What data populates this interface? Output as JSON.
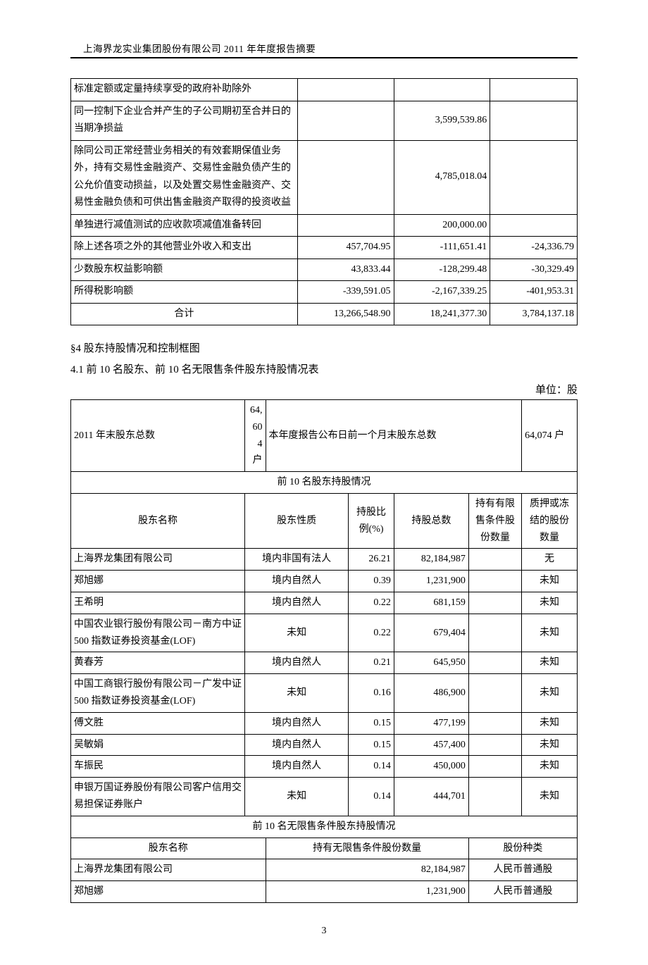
{
  "header": "上海界龙实业集团股份有限公司 2011 年年度报告摘要",
  "page_number": "3",
  "table1": {
    "rows": [
      {
        "label": "标准定额或定量持续享受的政府补助除外",
        "c1": "",
        "c2": "",
        "c3": ""
      },
      {
        "label": "同一控制下企业合并产生的子公司期初至合并日的当期净损益",
        "c1": "",
        "c2": "3,599,539.86",
        "c3": ""
      },
      {
        "label": "除同公司正常经营业务相关的有效套期保值业务外，持有交易性金融资产、交易性金融负债产生的公允价值变动损益，以及处置交易性金融资产、交易性金融负债和可供出售金融资产取得的投资收益",
        "c1": "",
        "c2": "4,785,018.04",
        "c3": ""
      },
      {
        "label": "单独进行减值测试的应收款项减值准备转回",
        "c1": "",
        "c2": "200,000.00",
        "c3": ""
      },
      {
        "label": "除上述各项之外的其他营业外收入和支出",
        "c1": "457,704.95",
        "c2": "-111,651.41",
        "c3": "-24,336.79"
      },
      {
        "label": "少数股东权益影响额",
        "c1": "43,833.44",
        "c2": "-128,299.48",
        "c3": "-30,329.49"
      },
      {
        "label": "所得税影响额",
        "c1": "-339,591.05",
        "c2": "-2,167,339.25",
        "c3": "-401,953.31"
      },
      {
        "label": "合计",
        "c1": "13,266,548.90",
        "c2": "18,241,377.30",
        "c3": "3,784,137.18",
        "label_center": true
      }
    ]
  },
  "section4": {
    "title": "§4 股东持股情况和控制框图",
    "sub": "4.1 前 10 名股东、前 10 名无限售条件股东持股情况表",
    "unit": "单位：股"
  },
  "table2": {
    "top": {
      "l1": "2011 年末股东总数",
      "v1": "64,604 户",
      "l2": "本年度报告公布日前一个月末股东总数",
      "v2": "64,074 户"
    },
    "section_a_title": "前 10 名股东持股情况",
    "head_a": {
      "name": "股东名称",
      "nature": "股东性质",
      "pct": "持股比例(%)",
      "total": "持股总数",
      "restricted": "持有有限售条件股份数量",
      "pledge": "质押或冻结的股份数量"
    },
    "rows_a": [
      {
        "name": "上海界龙集团有限公司",
        "nature": "境内非国有法人",
        "pct": "26.21",
        "total": "82,184,987",
        "restricted": "",
        "pledge": "无"
      },
      {
        "name": "郑旭娜",
        "nature": "境内自然人",
        "pct": "0.39",
        "total": "1,231,900",
        "restricted": "",
        "pledge": "未知"
      },
      {
        "name": "王希明",
        "nature": "境内自然人",
        "pct": "0.22",
        "total": "681,159",
        "restricted": "",
        "pledge": "未知"
      },
      {
        "name": "中国农业银行股份有限公司－南方中证 500 指数证券投资基金(LOF)",
        "nature": "未知",
        "pct": "0.22",
        "total": "679,404",
        "restricted": "",
        "pledge": "未知"
      },
      {
        "name": "黄春芳",
        "nature": "境内自然人",
        "pct": "0.21",
        "total": "645,950",
        "restricted": "",
        "pledge": "未知"
      },
      {
        "name": "中国工商银行股份有限公司－广发中证 500 指数证券投资基金(LOF)",
        "nature": "未知",
        "pct": "0.16",
        "total": "486,900",
        "restricted": "",
        "pledge": "未知"
      },
      {
        "name": "傅文胜",
        "nature": "境内自然人",
        "pct": "0.15",
        "total": "477,199",
        "restricted": "",
        "pledge": "未知"
      },
      {
        "name": "吴敏娟",
        "nature": "境内自然人",
        "pct": "0.15",
        "total": "457,400",
        "restricted": "",
        "pledge": "未知"
      },
      {
        "name": "车振民",
        "nature": "境内自然人",
        "pct": "0.14",
        "total": "450,000",
        "restricted": "",
        "pledge": "未知"
      },
      {
        "name": "申银万国证券股份有限公司客户信用交易担保证券账户",
        "nature": "未知",
        "pct": "0.14",
        "total": "444,701",
        "restricted": "",
        "pledge": "未知"
      }
    ],
    "section_b_title": "前 10 名无限售条件股东持股情况",
    "head_b": {
      "name": "股东名称",
      "qty": "持有无限售条件股份数量",
      "kind": "股份种类"
    },
    "rows_b": [
      {
        "name": "上海界龙集团有限公司",
        "qty": "82,184,987",
        "kind": "人民币普通股"
      },
      {
        "name": "郑旭娜",
        "qty": "1,231,900",
        "kind": "人民币普通股"
      }
    ]
  }
}
